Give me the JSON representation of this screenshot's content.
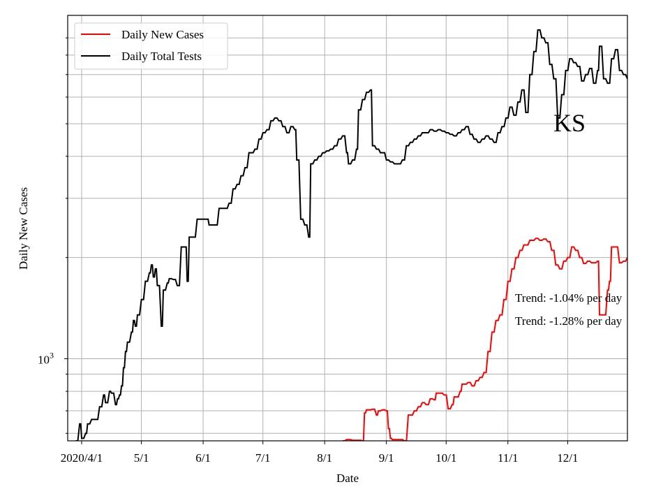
{
  "chart_data": {
    "type": "line",
    "xlabel": "Date",
    "ylabel": "Daily New Cases",
    "yscale": "log",
    "ylim": [
      570,
      10500
    ],
    "grid": true,
    "legend_position": "top-left",
    "state_label": "KS",
    "x_start": "2020-03-25",
    "x_end": "2020-12-31",
    "x_ticks": [
      {
        "date": "2020-04-01",
        "label": "2020/4/1"
      },
      {
        "date": "2020-05-01",
        "label": "5/1"
      },
      {
        "date": "2020-06-01",
        "label": "6/1"
      },
      {
        "date": "2020-07-01",
        "label": "7/1"
      },
      {
        "date": "2020-08-01",
        "label": "8/1"
      },
      {
        "date": "2020-09-01",
        "label": "9/1"
      },
      {
        "date": "2020-10-01",
        "label": "10/1"
      },
      {
        "date": "2020-11-01",
        "label": "11/1"
      },
      {
        "date": "2020-12-01",
        "label": "12/1"
      }
    ],
    "y_major_ticks": [
      {
        "value": 1000,
        "base": "10",
        "exp": "3"
      }
    ],
    "y_minor_ticks": [
      600,
      700,
      800,
      900,
      2000,
      3000,
      4000,
      5000,
      6000,
      7000,
      8000,
      9000
    ],
    "annotations": [
      "Trend: -1.04% per day",
      "Trend: -1.28% per day"
    ],
    "series": [
      {
        "name": "Daily New Cases",
        "color": "#ff0000",
        "points": [
          [
            "2020-08-10",
            570
          ],
          [
            "2020-08-12",
            575
          ],
          [
            "2020-08-15",
            572
          ],
          [
            "2020-08-20",
            570
          ],
          [
            "2020-08-21",
            690
          ],
          [
            "2020-08-22",
            705
          ],
          [
            "2020-08-25",
            708
          ],
          [
            "2020-08-27",
            680
          ],
          [
            "2020-08-28",
            700
          ],
          [
            "2020-08-30",
            705
          ],
          [
            "2020-09-01",
            700
          ],
          [
            "2020-09-02",
            620
          ],
          [
            "2020-09-03",
            580
          ],
          [
            "2020-09-04",
            575
          ],
          [
            "2020-09-10",
            570
          ],
          [
            "2020-09-12",
            680
          ],
          [
            "2020-09-15",
            700
          ],
          [
            "2020-09-17",
            720
          ],
          [
            "2020-09-19",
            740
          ],
          [
            "2020-09-21",
            730
          ],
          [
            "2020-09-23",
            760
          ],
          [
            "2020-09-25",
            755
          ],
          [
            "2020-09-26",
            790
          ],
          [
            "2020-09-30",
            780
          ],
          [
            "2020-10-02",
            710
          ],
          [
            "2020-10-04",
            730
          ],
          [
            "2020-10-05",
            770
          ],
          [
            "2020-10-08",
            800
          ],
          [
            "2020-10-09",
            840
          ],
          [
            "2020-10-12",
            850
          ],
          [
            "2020-10-14",
            830
          ],
          [
            "2020-10-16",
            860
          ],
          [
            "2020-10-18",
            880
          ],
          [
            "2020-10-20",
            910
          ],
          [
            "2020-10-22",
            1050
          ],
          [
            "2020-10-24",
            1200
          ],
          [
            "2020-10-26",
            1300
          ],
          [
            "2020-10-28",
            1350
          ],
          [
            "2020-10-30",
            1500
          ],
          [
            "2020-11-01",
            1700
          ],
          [
            "2020-11-03",
            1850
          ],
          [
            "2020-11-05",
            2000
          ],
          [
            "2020-11-07",
            2100
          ],
          [
            "2020-11-09",
            2180
          ],
          [
            "2020-11-12",
            2250
          ],
          [
            "2020-11-15",
            2280
          ],
          [
            "2020-11-17",
            2250
          ],
          [
            "2020-11-19",
            2270
          ],
          [
            "2020-11-21",
            2230
          ],
          [
            "2020-11-23",
            2100
          ],
          [
            "2020-11-25",
            1900
          ],
          [
            "2020-11-27",
            1850
          ],
          [
            "2020-11-29",
            1950
          ],
          [
            "2020-12-01",
            2000
          ],
          [
            "2020-12-03",
            2150
          ],
          [
            "2020-12-05",
            2100
          ],
          [
            "2020-12-07",
            2000
          ],
          [
            "2020-12-09",
            1920
          ],
          [
            "2020-12-11",
            1950
          ],
          [
            "2020-12-13",
            1930
          ],
          [
            "2020-12-16",
            1950
          ],
          [
            "2020-12-17",
            1350
          ],
          [
            "2020-12-19",
            1350
          ],
          [
            "2020-12-21",
            1600
          ],
          [
            "2020-12-22",
            1700
          ],
          [
            "2020-12-23",
            2150
          ],
          [
            "2020-12-25",
            2150
          ],
          [
            "2020-12-27",
            1930
          ],
          [
            "2020-12-29",
            1950
          ],
          [
            "2020-12-31",
            2000
          ]
        ]
      },
      {
        "name": "Daily Total Tests",
        "color": "#000000",
        "points": [
          [
            "2020-03-29",
            570
          ],
          [
            "2020-03-31",
            640
          ],
          [
            "2020-04-01",
            580
          ],
          [
            "2020-04-03",
            600
          ],
          [
            "2020-04-04",
            640
          ],
          [
            "2020-04-06",
            660
          ],
          [
            "2020-04-08",
            660
          ],
          [
            "2020-04-10",
            720
          ],
          [
            "2020-04-12",
            780
          ],
          [
            "2020-04-13",
            740
          ],
          [
            "2020-04-15",
            800
          ],
          [
            "2020-04-16",
            790
          ],
          [
            "2020-04-18",
            730
          ],
          [
            "2020-04-19",
            760
          ],
          [
            "2020-04-20",
            780
          ],
          [
            "2020-04-21",
            830
          ],
          [
            "2020-04-22",
            940
          ],
          [
            "2020-04-23",
            1050
          ],
          [
            "2020-04-24",
            1120
          ],
          [
            "2020-04-26",
            1200
          ],
          [
            "2020-04-27",
            1300
          ],
          [
            "2020-04-28",
            1250
          ],
          [
            "2020-04-29",
            1350
          ],
          [
            "2020-05-01",
            1500
          ],
          [
            "2020-05-03",
            1700
          ],
          [
            "2020-05-05",
            1800
          ],
          [
            "2020-05-06",
            1900
          ],
          [
            "2020-05-07",
            1750
          ],
          [
            "2020-05-08",
            1850
          ],
          [
            "2020-05-09",
            1650
          ],
          [
            "2020-05-11",
            1250
          ],
          [
            "2020-05-12",
            1600
          ],
          [
            "2020-05-14",
            1680
          ],
          [
            "2020-05-15",
            1730
          ],
          [
            "2020-05-17",
            1720
          ],
          [
            "2020-05-19",
            1650
          ],
          [
            "2020-05-21",
            2150
          ],
          [
            "2020-05-23",
            2150
          ],
          [
            "2020-05-24",
            1700
          ],
          [
            "2020-05-25",
            2300
          ],
          [
            "2020-05-29",
            2600
          ],
          [
            "2020-06-01",
            2600
          ],
          [
            "2020-06-03",
            2600
          ],
          [
            "2020-06-04",
            2500
          ],
          [
            "2020-06-07",
            2500
          ],
          [
            "2020-06-09",
            2800
          ],
          [
            "2020-06-11",
            2800
          ],
          [
            "2020-06-14",
            2900
          ],
          [
            "2020-06-16",
            3200
          ],
          [
            "2020-06-18",
            3300
          ],
          [
            "2020-06-20",
            3500
          ],
          [
            "2020-06-22",
            3700
          ],
          [
            "2020-06-24",
            4100
          ],
          [
            "2020-06-27",
            4200
          ],
          [
            "2020-06-29",
            4500
          ],
          [
            "2020-07-01",
            4700
          ],
          [
            "2020-07-03",
            4800
          ],
          [
            "2020-07-05",
            5100
          ],
          [
            "2020-07-07",
            5200
          ],
          [
            "2020-07-09",
            5100
          ],
          [
            "2020-07-11",
            4900
          ],
          [
            "2020-07-13",
            4700
          ],
          [
            "2020-07-15",
            4900
          ],
          [
            "2020-07-17",
            4800
          ],
          [
            "2020-07-18",
            3900
          ],
          [
            "2020-07-20",
            2600
          ],
          [
            "2020-07-22",
            2500
          ],
          [
            "2020-07-24",
            2300
          ],
          [
            "2020-07-25",
            3800
          ],
          [
            "2020-07-27",
            3900
          ],
          [
            "2020-07-29",
            4000
          ],
          [
            "2020-07-31",
            4100
          ],
          [
            "2020-08-02",
            4150
          ],
          [
            "2020-08-04",
            4200
          ],
          [
            "2020-08-06",
            4300
          ],
          [
            "2020-08-08",
            4500
          ],
          [
            "2020-08-10",
            4600
          ],
          [
            "2020-08-12",
            4100
          ],
          [
            "2020-08-13",
            3800
          ],
          [
            "2020-08-15",
            3900
          ],
          [
            "2020-08-17",
            4200
          ],
          [
            "2020-08-18",
            5500
          ],
          [
            "2020-08-20",
            5900
          ],
          [
            "2020-08-22",
            6200
          ],
          [
            "2020-08-24",
            6300
          ],
          [
            "2020-08-25",
            4300
          ],
          [
            "2020-08-27",
            4200
          ],
          [
            "2020-08-29",
            4100
          ],
          [
            "2020-09-01",
            3900
          ],
          [
            "2020-09-03",
            3850
          ],
          [
            "2020-09-05",
            3800
          ],
          [
            "2020-09-07",
            3800
          ],
          [
            "2020-09-09",
            3900
          ],
          [
            "2020-09-11",
            4300
          ],
          [
            "2020-09-13",
            4400
          ],
          [
            "2020-09-15",
            4500
          ],
          [
            "2020-09-17",
            4600
          ],
          [
            "2020-09-19",
            4700
          ],
          [
            "2020-09-21",
            4700
          ],
          [
            "2020-09-23",
            4800
          ],
          [
            "2020-09-25",
            4750
          ],
          [
            "2020-09-27",
            4800
          ],
          [
            "2020-09-29",
            4750
          ],
          [
            "2020-10-01",
            4700
          ],
          [
            "2020-10-03",
            4650
          ],
          [
            "2020-10-05",
            4600
          ],
          [
            "2020-10-07",
            4700
          ],
          [
            "2020-10-09",
            4800
          ],
          [
            "2020-10-11",
            4900
          ],
          [
            "2020-10-13",
            4650
          ],
          [
            "2020-10-15",
            4500
          ],
          [
            "2020-10-17",
            4400
          ],
          [
            "2020-10-19",
            4500
          ],
          [
            "2020-10-21",
            4600
          ],
          [
            "2020-10-23",
            4500
          ],
          [
            "2020-10-25",
            4400
          ],
          [
            "2020-10-27",
            4700
          ],
          [
            "2020-10-29",
            4900
          ],
          [
            "2020-10-31",
            5200
          ],
          [
            "2020-11-02",
            5600
          ],
          [
            "2020-11-04",
            5300
          ],
          [
            "2020-11-06",
            5800
          ],
          [
            "2020-11-08",
            6300
          ],
          [
            "2020-11-10",
            5400
          ],
          [
            "2020-11-12",
            7000
          ],
          [
            "2020-11-14",
            8200
          ],
          [
            "2020-11-16",
            9500
          ],
          [
            "2020-11-18",
            9000
          ],
          [
            "2020-11-20",
            8700
          ],
          [
            "2020-11-22",
            7500
          ],
          [
            "2020-11-24",
            6800
          ],
          [
            "2020-11-26",
            5200
          ],
          [
            "2020-11-28",
            6100
          ],
          [
            "2020-11-30",
            7200
          ],
          [
            "2020-12-02",
            7800
          ],
          [
            "2020-12-04",
            7600
          ],
          [
            "2020-12-06",
            7400
          ],
          [
            "2020-12-08",
            6700
          ],
          [
            "2020-12-10",
            7000
          ],
          [
            "2020-12-12",
            7300
          ],
          [
            "2020-12-14",
            6600
          ],
          [
            "2020-12-16",
            7200
          ],
          [
            "2020-12-17",
            8500
          ],
          [
            "2020-12-19",
            6800
          ],
          [
            "2020-12-21",
            6600
          ],
          [
            "2020-12-23",
            7800
          ],
          [
            "2020-12-25",
            8300
          ],
          [
            "2020-12-27",
            7200
          ],
          [
            "2020-12-29",
            7000
          ],
          [
            "2020-12-31",
            6800
          ]
        ]
      }
    ]
  }
}
